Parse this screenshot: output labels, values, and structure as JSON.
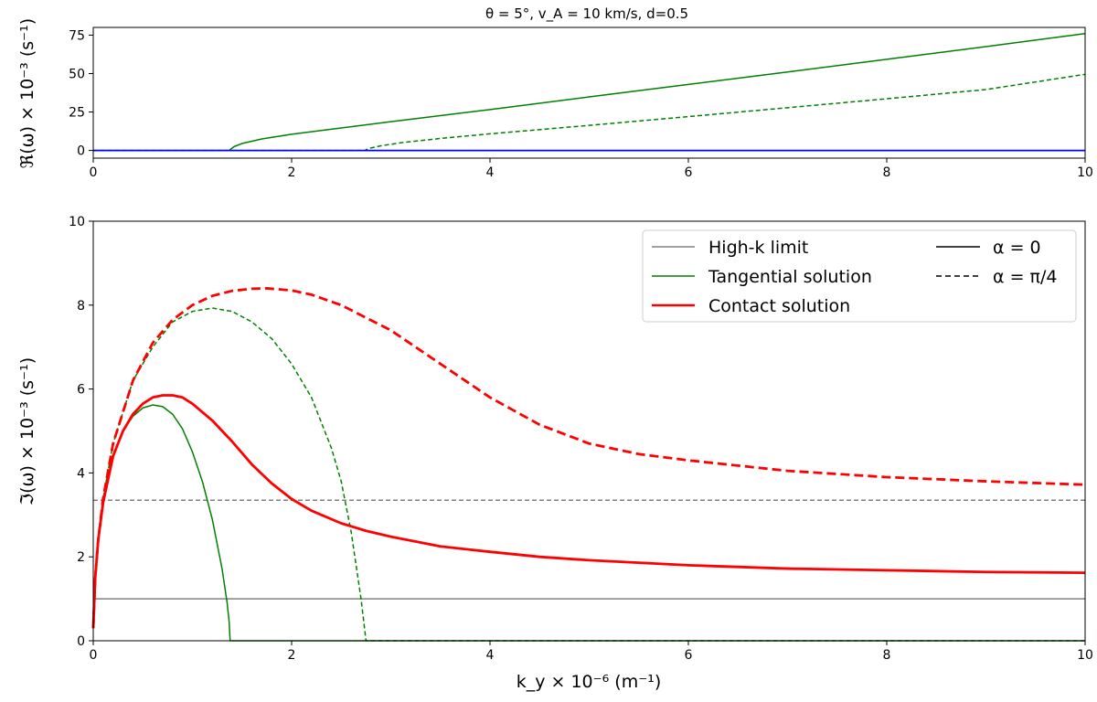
{
  "chart_data": [
    {
      "type": "line",
      "title": "θ = 5°, v_A = 10 km/s, d=0.5",
      "xlabel": "",
      "ylabel": "ℜ(ω) × 10⁻³ (s⁻¹)",
      "xlim": [
        0,
        10
      ],
      "ylim": [
        -5,
        80
      ],
      "xticks": [
        "0",
        "2",
        "4",
        "6",
        "8",
        "10"
      ],
      "yticks": [
        "0",
        "25",
        "50",
        "75"
      ],
      "grid": false,
      "series": [
        {
          "solution": "Tangential solution",
          "alpha": "α = 0",
          "color": "#008000",
          "style": "solid",
          "x": [
            0,
            1.38,
            1.38,
            1.42,
            1.5,
            1.7,
            2,
            3,
            4,
            5,
            6,
            7,
            8,
            9,
            10
          ],
          "y": [
            0,
            0,
            0.5,
            2.5,
            4.5,
            7.5,
            10.5,
            18.7,
            26.6,
            34.8,
            42.9,
            51.0,
            59.3,
            67.5,
            76
          ]
        },
        {
          "solution": "Tangential solution",
          "alpha": "α = π/4",
          "color": "#008000",
          "style": "dashed",
          "x": [
            0,
            2.75,
            2.75,
            2.8,
            2.9,
            3.1,
            3.5,
            4,
            5,
            6,
            7,
            8,
            9,
            10
          ],
          "y": [
            0,
            0,
            0.5,
            1.6,
            3.0,
            5.0,
            7.8,
            10.8,
            16.3,
            22.0,
            27.8,
            33.6,
            39.6,
            49.5
          ]
        },
        {
          "solution": "Contact solution",
          "alpha": "α = 0",
          "color": "#0000ff",
          "style": "solid",
          "x": [
            0,
            10
          ],
          "y": [
            0,
            0
          ]
        }
      ]
    },
    {
      "type": "line",
      "xlabel": "k_y × 10⁻⁶ (m⁻¹)",
      "ylabel": "ℑ(ω) × 10⁻³ (s⁻¹)",
      "xlim": [
        0,
        10
      ],
      "ylim": [
        0,
        10
      ],
      "xticks": [
        "0",
        "2",
        "4",
        "6",
        "8",
        "10"
      ],
      "yticks": [
        "0",
        "2",
        "4",
        "6",
        "8",
        "10"
      ],
      "grid": false,
      "legend_position": "top-right",
      "legend": {
        "solutions": [
          {
            "label": "High-k limit",
            "color": "#808080"
          },
          {
            "label": "Tangential solution",
            "color": "#008000"
          },
          {
            "label": "Contact solution",
            "color": "#ff0000"
          }
        ],
        "styles": [
          {
            "label": "α = 0",
            "style": "solid"
          },
          {
            "label": "α = π/4",
            "style": "dashed"
          }
        ]
      },
      "series": [
        {
          "solution": "High-k limit",
          "alpha": "α = 0",
          "color": "#808080",
          "style": "solid",
          "x": [
            0,
            10
          ],
          "y": [
            1.0,
            1.0
          ]
        },
        {
          "solution": "High-k limit",
          "alpha": "α = π/4",
          "color": "#808080",
          "style": "dashed",
          "x": [
            0,
            10
          ],
          "y": [
            3.35,
            3.35
          ]
        },
        {
          "solution": "Tangential solution",
          "alpha": "α = 0",
          "color": "#008000",
          "style": "solid",
          "x": [
            0,
            0.02,
            0.05,
            0.1,
            0.2,
            0.3,
            0.4,
            0.5,
            0.6,
            0.7,
            0.8,
            0.9,
            1.0,
            1.1,
            1.2,
            1.3,
            1.35,
            1.37,
            1.38,
            1.38,
            10
          ],
          "y": [
            0.3,
            1.5,
            2.4,
            3.3,
            4.4,
            5.0,
            5.35,
            5.55,
            5.62,
            5.58,
            5.4,
            5.05,
            4.5,
            3.8,
            2.9,
            1.7,
            0.9,
            0.45,
            0.0,
            0.0,
            0.0
          ]
        },
        {
          "solution": "Tangential solution",
          "alpha": "α = π/4",
          "color": "#008000",
          "style": "dashed",
          "x": [
            0,
            0.02,
            0.05,
            0.1,
            0.2,
            0.4,
            0.6,
            0.8,
            1.0,
            1.2,
            1.4,
            1.6,
            1.8,
            2.0,
            2.2,
            2.4,
            2.5,
            2.6,
            2.7,
            2.75,
            2.75,
            10
          ],
          "y": [
            0.3,
            1.5,
            2.4,
            3.4,
            4.7,
            6.2,
            7.0,
            7.6,
            7.85,
            7.93,
            7.85,
            7.6,
            7.2,
            6.6,
            5.8,
            4.6,
            3.8,
            2.6,
            1.0,
            0.0,
            0.0,
            0.0
          ]
        },
        {
          "solution": "Contact solution",
          "alpha": "α = 0",
          "color": "#ff0000",
          "style": "solid",
          "x": [
            0,
            0.02,
            0.05,
            0.1,
            0.2,
            0.3,
            0.4,
            0.5,
            0.6,
            0.7,
            0.8,
            0.9,
            1.0,
            1.2,
            1.4,
            1.6,
            1.8,
            2.0,
            2.2,
            2.5,
            2.75,
            3.0,
            3.5,
            4.0,
            4.5,
            5.0,
            6.0,
            7.0,
            8.0,
            9.0,
            10.0
          ],
          "y": [
            0.3,
            1.5,
            2.4,
            3.3,
            4.4,
            5.0,
            5.4,
            5.65,
            5.8,
            5.85,
            5.85,
            5.8,
            5.65,
            5.25,
            4.75,
            4.2,
            3.75,
            3.38,
            3.1,
            2.8,
            2.62,
            2.48,
            2.25,
            2.12,
            2.0,
            1.92,
            1.8,
            1.72,
            1.68,
            1.64,
            1.62
          ]
        },
        {
          "solution": "Contact solution",
          "alpha": "α = π/4",
          "color": "#ff0000",
          "style": "dashed",
          "x": [
            0,
            0.02,
            0.05,
            0.1,
            0.2,
            0.4,
            0.6,
            0.8,
            1.0,
            1.2,
            1.4,
            1.6,
            1.75,
            2.0,
            2.2,
            2.5,
            3.0,
            3.5,
            4.0,
            4.5,
            5.0,
            5.5,
            6.0,
            7.0,
            8.0,
            9.0,
            10.0
          ],
          "y": [
            0.3,
            1.5,
            2.4,
            3.4,
            4.7,
            6.2,
            7.1,
            7.65,
            8.0,
            8.22,
            8.34,
            8.39,
            8.4,
            8.35,
            8.25,
            8.0,
            7.4,
            6.6,
            5.8,
            5.15,
            4.7,
            4.45,
            4.3,
            4.05,
            3.9,
            3.8,
            3.72
          ]
        }
      ]
    }
  ]
}
